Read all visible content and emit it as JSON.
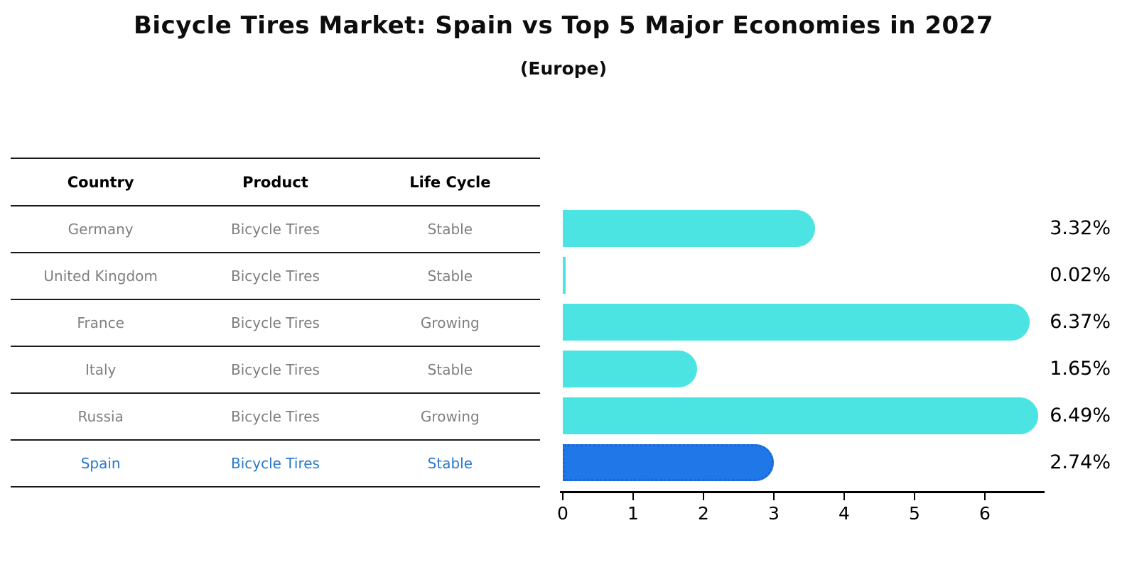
{
  "title": "Bicycle Tires Market: Spain vs Top 5 Major Economies in 2027",
  "subtitle": "(Europe)",
  "table": {
    "headers": {
      "country": "Country",
      "product": "Product",
      "life_cycle": "Life Cycle"
    },
    "rows": [
      {
        "country": "Germany",
        "product": "Bicycle Tires",
        "life_cycle": "Stable",
        "highlighted": false
      },
      {
        "country": "United Kingdom",
        "product": "Bicycle Tires",
        "life_cycle": "Stable",
        "highlighted": false
      },
      {
        "country": "France",
        "product": "Bicycle Tires",
        "life_cycle": "Growing",
        "highlighted": false
      },
      {
        "country": "Italy",
        "product": "Bicycle Tires",
        "life_cycle": "Stable",
        "highlighted": false
      },
      {
        "country": "Russia",
        "product": "Bicycle Tires",
        "life_cycle": "Growing",
        "highlighted": false
      },
      {
        "country": "Spain",
        "product": "Bicycle Tires",
        "life_cycle": "Stable",
        "highlighted": true
      }
    ]
  },
  "chart_data": {
    "type": "bar",
    "orientation": "horizontal",
    "title": "Bicycle Tires Market: Spain vs Top 5 Major Economies in 2027 (Europe)",
    "categories": [
      "Germany",
      "United Kingdom",
      "France",
      "Italy",
      "Russia",
      "Spain"
    ],
    "values": [
      3.32,
      0.02,
      6.37,
      1.65,
      6.49,
      2.74
    ],
    "value_labels": [
      "3.32%",
      "0.02%",
      "6.37%",
      "1.65%",
      "6.49%",
      "2.74%"
    ],
    "x_ticks": [
      "0",
      "1",
      "2",
      "3",
      "4",
      "5",
      "6"
    ],
    "xlim": [
      0,
      6.9
    ],
    "grid": false,
    "legend": "none",
    "highlight_category": "Spain",
    "bar_color": "#4BE4E2",
    "highlight_bar_color": "#2077E8",
    "highlight_border_color": "#1a66d6",
    "highlight_border_style": "dotted"
  },
  "colors": {
    "row_text": "#7f7f7f",
    "header_text": "#000000",
    "highlight_text": "#2878CC",
    "table_lines": "#1a1a1a",
    "axis": "#000000",
    "value_label_text": "#000000",
    "background": "#ffffff"
  }
}
